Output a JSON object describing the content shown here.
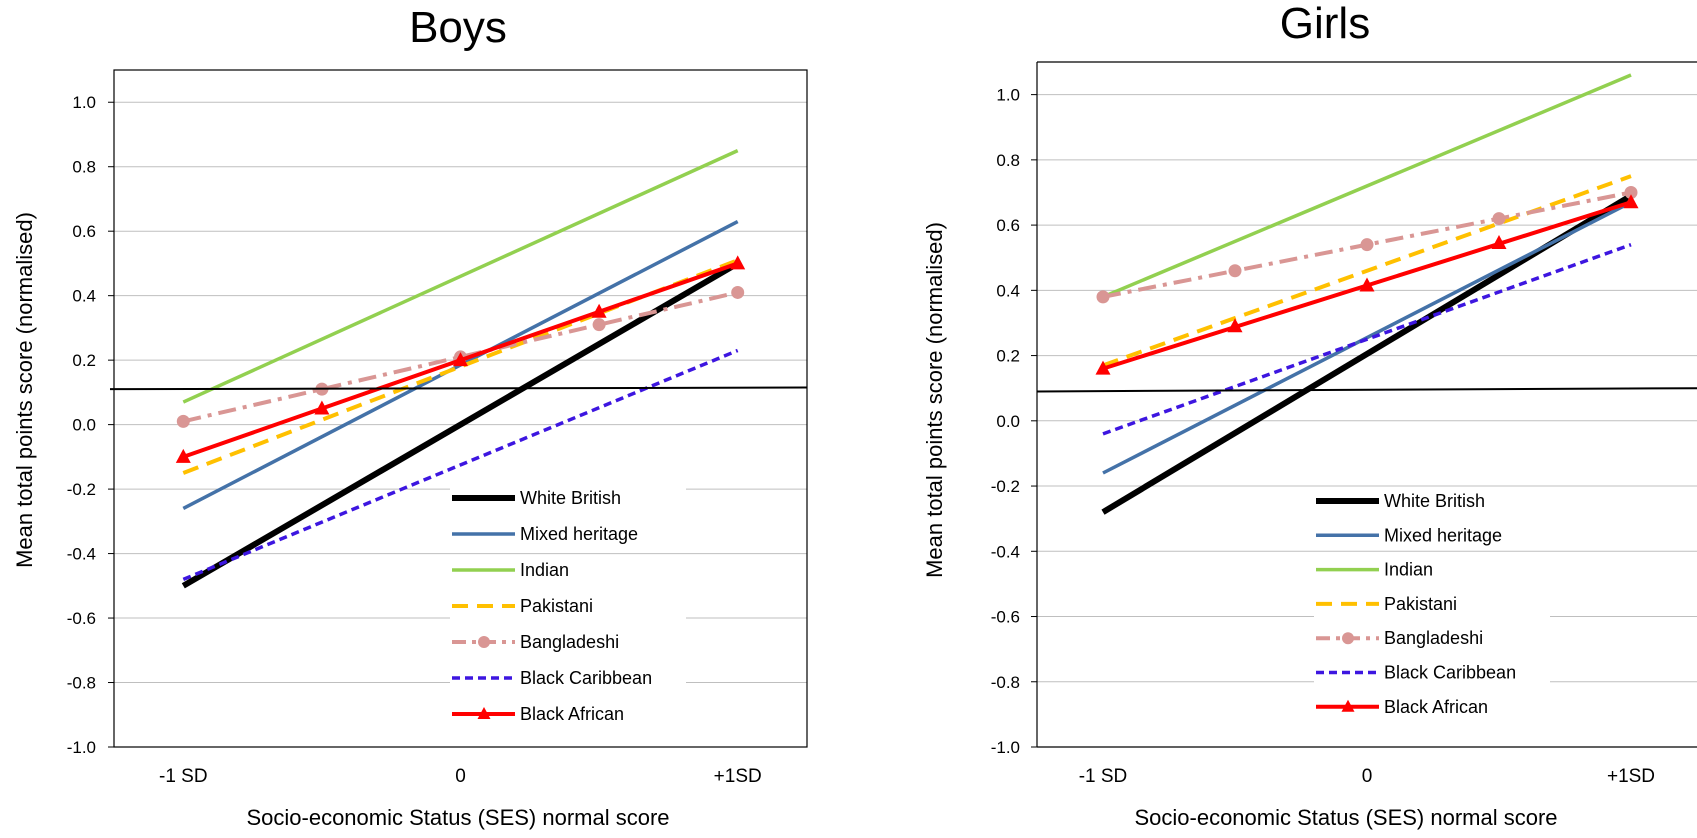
{
  "chart_data": [
    {
      "type": "line",
      "title": "Boys",
      "xlabel": "Socio-economic Status (SES) normal score",
      "ylabel": "Mean total points score (normalised)",
      "categories": [
        "-1 SD",
        "0",
        "+1SD"
      ],
      "x": [
        -1,
        1
      ],
      "xlim": [
        -1.25,
        1.25
      ],
      "ylim": [
        -1.0,
        1.1
      ],
      "yticks": [
        "1.0",
        "0.8",
        "0.6",
        "0.4",
        "0.2",
        "0.0",
        "-0.2",
        "-0.4",
        "-0.6",
        "-0.8",
        "-1.0"
      ],
      "grid": true,
      "legend_position": "bottom-right",
      "reference_line": {
        "y_start": 0.11,
        "y_end": 0.115
      },
      "series": [
        {
          "name": "White British",
          "color": "#000000",
          "style": "solid-thick",
          "y": [
            -0.5,
            0.5
          ]
        },
        {
          "name": "Mixed heritage",
          "color": "#4472A8",
          "style": "solid",
          "y": [
            -0.26,
            0.63
          ]
        },
        {
          "name": "Indian",
          "color": "#92D050",
          "style": "solid",
          "y": [
            0.07,
            0.85
          ]
        },
        {
          "name": "Pakistani",
          "color": "#FFC000",
          "style": "dashed",
          "y": [
            -0.15,
            0.51
          ]
        },
        {
          "name": "Bangladeshi",
          "color": "#D99694",
          "style": "dash-dot-circle",
          "y": [
            0.01,
            0.41
          ],
          "markers": [
            [
              -1,
              0.01
            ],
            [
              -0.5,
              0.11
            ],
            [
              0,
              0.21
            ],
            [
              0.5,
              0.31
            ],
            [
              1,
              0.41
            ]
          ]
        },
        {
          "name": "Black Caribbean",
          "color": "#3D16E0",
          "style": "short-dash",
          "y": [
            -0.48,
            0.23
          ]
        },
        {
          "name": "Black African",
          "color": "#FF0000",
          "style": "solid-triangle",
          "y": [
            -0.1,
            0.5
          ],
          "markers": [
            [
              -1,
              -0.1
            ],
            [
              -0.5,
              0.05
            ],
            [
              0,
              0.2
            ],
            [
              0.5,
              0.35
            ],
            [
              1,
              0.5
            ]
          ]
        }
      ]
    },
    {
      "type": "line",
      "title": "Girls",
      "xlabel": "Socio-economic Status (SES) normal score",
      "ylabel": "Mean total points score (normalised)",
      "categories": [
        "-1 SD",
        "0",
        "+1SD"
      ],
      "x": [
        -1,
        1
      ],
      "xlim": [
        -1.25,
        1.25
      ],
      "ylim": [
        -1.0,
        1.1
      ],
      "yticks": [
        "1.0",
        "0.8",
        "0.6",
        "0.4",
        "0.2",
        "0.0",
        "-0.2",
        "-0.4",
        "-0.6",
        "-0.8",
        "-1.0"
      ],
      "grid": true,
      "legend_position": "bottom-right",
      "reference_line": {
        "y_start": 0.09,
        "y_end": 0.1
      },
      "series": [
        {
          "name": "White British",
          "color": "#000000",
          "style": "solid-thick",
          "y": [
            -0.28,
            0.69
          ]
        },
        {
          "name": "Mixed heritage",
          "color": "#4472A8",
          "style": "solid",
          "y": [
            -0.16,
            0.67
          ]
        },
        {
          "name": "Indian",
          "color": "#92D050",
          "style": "solid",
          "y": [
            0.38,
            1.06
          ]
        },
        {
          "name": "Pakistani",
          "color": "#FFC000",
          "style": "dashed",
          "y": [
            0.17,
            0.75
          ]
        },
        {
          "name": "Bangladeshi",
          "color": "#D99694",
          "style": "dash-dot-circle",
          "y": [
            0.38,
            0.7
          ],
          "markers": [
            [
              -1,
              0.38
            ],
            [
              -0.5,
              0.46
            ],
            [
              0,
              0.54
            ],
            [
              0.5,
              0.62
            ],
            [
              1,
              0.7
            ]
          ]
        },
        {
          "name": "Black Caribbean",
          "color": "#3D16E0",
          "style": "short-dash",
          "y": [
            -0.04,
            0.54
          ]
        },
        {
          "name": "Black African",
          "color": "#FF0000",
          "style": "solid-triangle",
          "y": [
            0.16,
            0.67
          ],
          "markers": [
            [
              -1,
              0.16
            ],
            [
              -0.5,
              0.29
            ],
            [
              0,
              0.415
            ],
            [
              0.5,
              0.545
            ],
            [
              1,
              0.67
            ]
          ]
        }
      ]
    }
  ]
}
